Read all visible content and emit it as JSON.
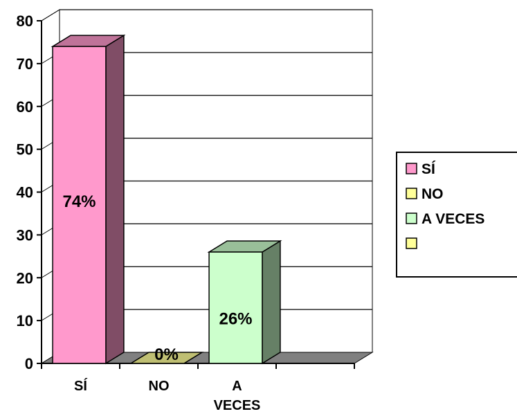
{
  "chart_data": {
    "type": "bar",
    "categories": [
      "SÍ",
      "NO",
      "A VECES",
      ""
    ],
    "values": [
      74,
      0,
      26,
      null
    ],
    "data_labels": [
      "74%",
      "0%",
      "26%",
      ""
    ],
    "colors": [
      "#ff99cc",
      "#ffff99",
      "#ccffcc",
      "#ffff99"
    ],
    "ylim": [
      0,
      80
    ],
    "yticks": [
      0,
      10,
      20,
      30,
      40,
      50,
      60,
      70,
      80
    ],
    "grid": true,
    "three_d": true,
    "legend": {
      "position": "right",
      "entries": [
        "SÍ",
        "NO",
        "A VECES",
        ""
      ]
    }
  }
}
